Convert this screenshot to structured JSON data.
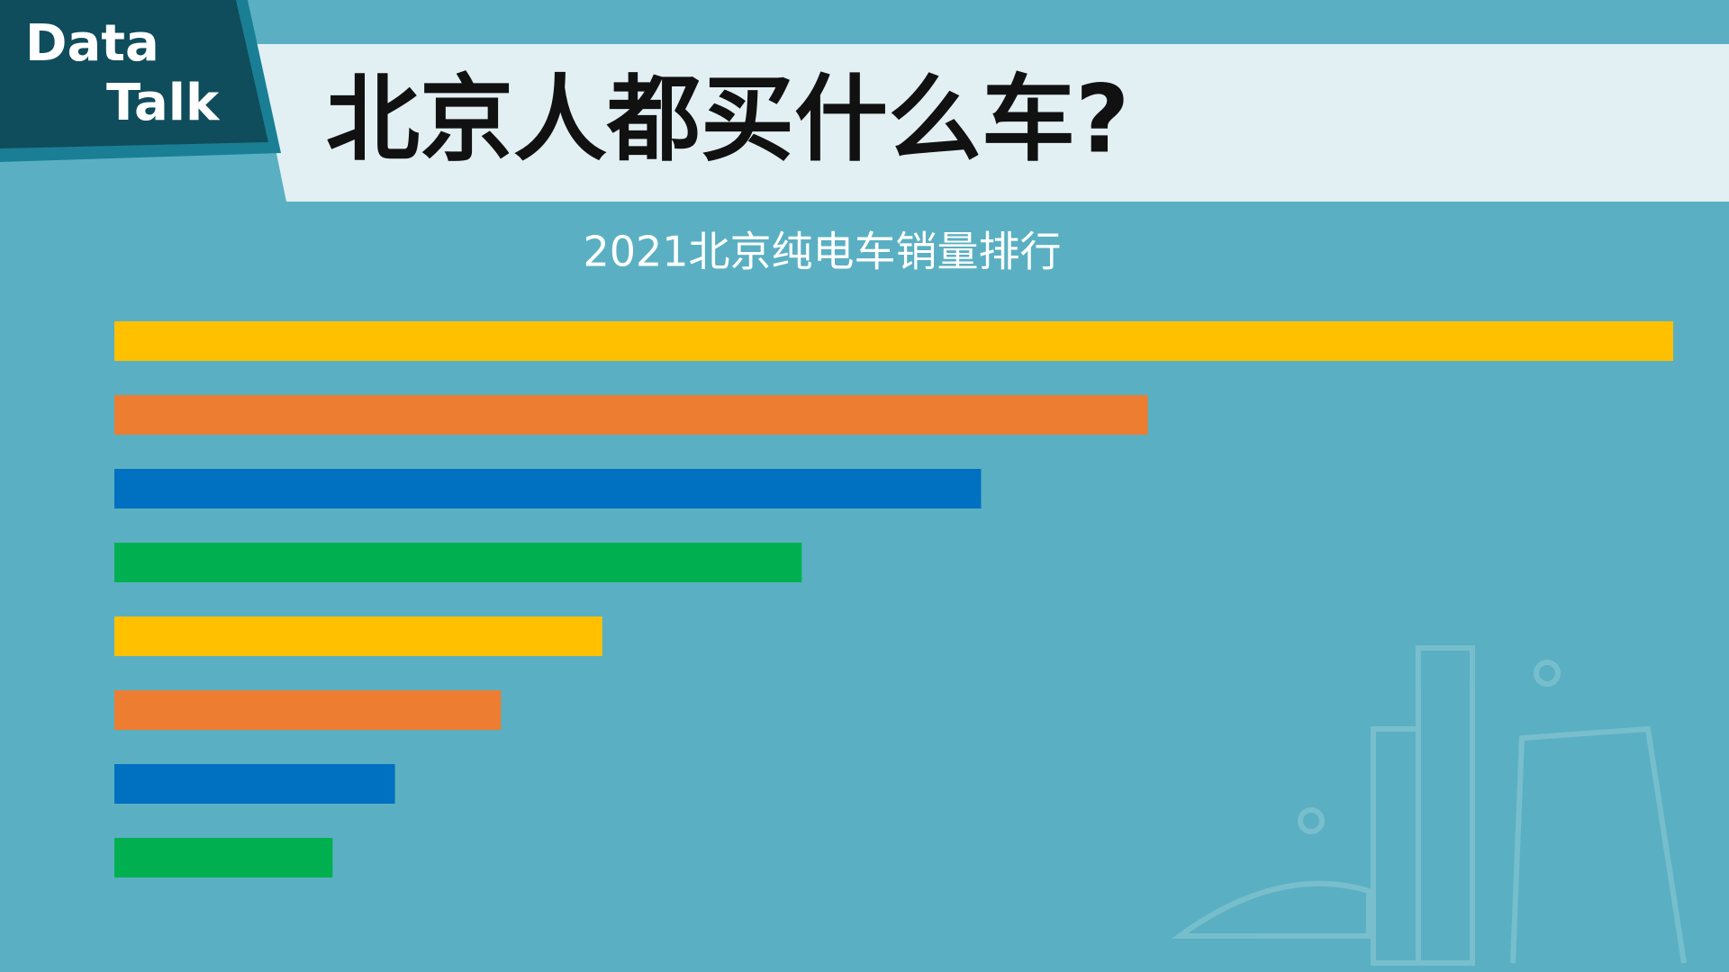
{
  "logo": {
    "line1": "Data",
    "line2": "Talk"
  },
  "chart_data": {
    "type": "barh",
    "title": "北京人都买什么车?",
    "subtitle": "2021北京纯电车销量排行",
    "categories": [
      null,
      null,
      null,
      null,
      null,
      null,
      null,
      null
    ],
    "values": [
      100,
      66.3,
      55.6,
      44.1,
      31.3,
      24.8,
      18.0,
      14.0
    ],
    "colors": [
      "#ffc000",
      "#ed7d31",
      "#0070c0",
      "#00b050",
      "#ffc000",
      "#ed7d31",
      "#0070c0",
      "#00b050"
    ],
    "xlim": [
      0,
      100
    ]
  }
}
